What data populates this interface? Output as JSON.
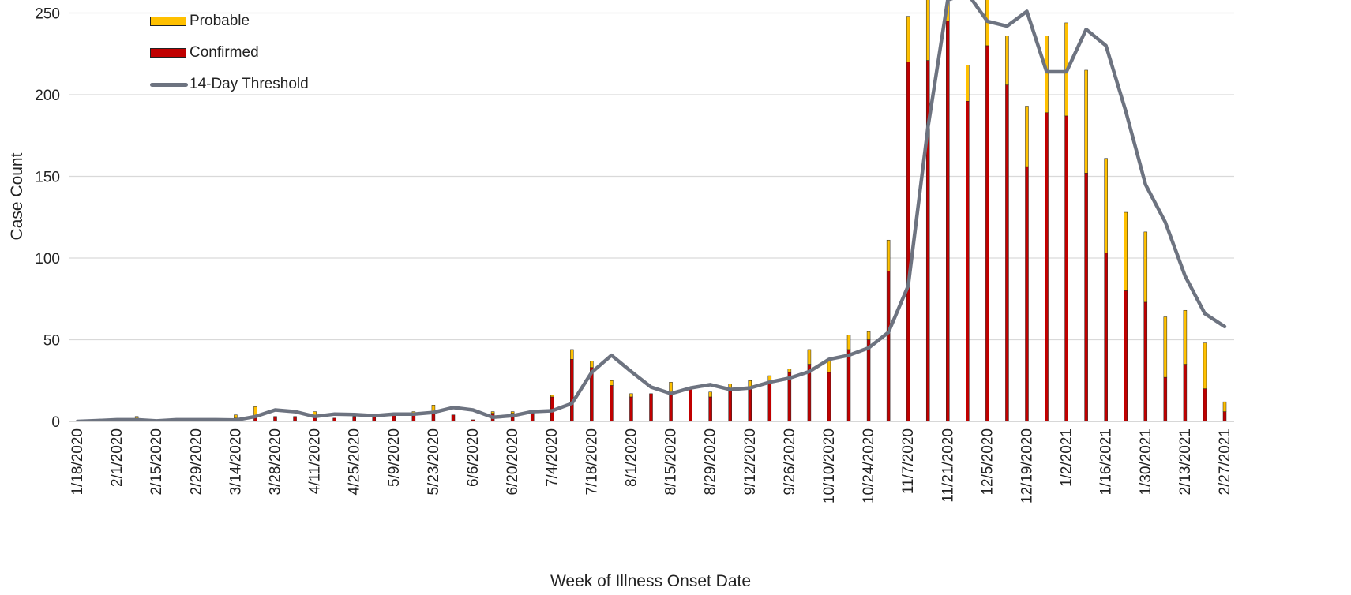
{
  "chart_data": {
    "type": "bar",
    "xlabel": "Week of Illness Onset Date",
    "ylabel": "Case Count",
    "ylim": [
      0,
      250
    ],
    "yticks": [
      0,
      50,
      100,
      150,
      200,
      250
    ],
    "grid": true,
    "legend_position": "top-left",
    "categories": [
      "1/18/2020",
      "1/25/2020",
      "2/1/2020",
      "2/8/2020",
      "2/15/2020",
      "2/22/2020",
      "2/29/2020",
      "3/7/2020",
      "3/14/2020",
      "3/21/2020",
      "3/28/2020",
      "4/4/2020",
      "4/11/2020",
      "4/18/2020",
      "4/25/2020",
      "5/2/2020",
      "5/9/2020",
      "5/16/2020",
      "5/23/2020",
      "5/30/2020",
      "6/6/2020",
      "6/13/2020",
      "6/20/2020",
      "6/27/2020",
      "7/4/2020",
      "7/11/2020",
      "7/18/2020",
      "7/25/2020",
      "8/1/2020",
      "8/8/2020",
      "8/15/2020",
      "8/22/2020",
      "8/29/2020",
      "9/5/2020",
      "9/12/2020",
      "9/19/2020",
      "9/26/2020",
      "10/3/2020",
      "10/10/2020",
      "10/17/2020",
      "10/24/2020",
      "10/31/2020",
      "11/7/2020",
      "11/14/2020",
      "11/21/2020",
      "11/28/2020",
      "12/5/2020",
      "12/12/2020",
      "12/19/2020",
      "12/26/2020",
      "1/2/2021",
      "1/9/2021",
      "1/16/2021",
      "1/23/2021",
      "1/30/2021",
      "2/6/2021",
      "2/13/2021",
      "2/20/2021",
      "2/27/2021"
    ],
    "tick_labels": [
      "1/18/2020",
      "2/1/2020",
      "2/15/2020",
      "2/29/2020",
      "3/14/2020",
      "3/28/2020",
      "4/11/2020",
      "4/25/2020",
      "5/9/2020",
      "5/23/2020",
      "6/6/2020",
      "6/20/2020",
      "7/4/2020",
      "7/18/2020",
      "8/1/2020",
      "8/15/2020",
      "8/29/2020",
      "9/12/2020",
      "9/26/2020",
      "10/10/2020",
      "10/24/2020",
      "11/7/2020",
      "11/21/2020",
      "12/5/2020",
      "12/19/2020",
      "1/2/2021",
      "1/16/2021",
      "1/30/2021",
      "2/13/2021",
      "2/27/2021"
    ],
    "series": [
      {
        "name": "Confirmed",
        "color": "#C00000",
        "kind": "bar-stacked",
        "values": [
          0,
          0,
          0,
          2,
          0,
          0,
          0,
          0,
          2,
          2,
          3,
          3,
          3,
          2,
          3,
          3,
          4,
          5,
          6,
          4,
          1,
          5,
          5,
          5,
          15,
          38,
          33,
          22,
          15,
          17,
          18,
          20,
          15,
          20,
          20,
          24,
          30,
          35,
          30,
          44,
          50,
          92,
          220,
          221,
          245,
          196,
          230,
          206,
          156,
          189,
          187,
          152,
          103,
          80,
          73,
          27,
          35,
          20,
          6
        ]
      },
      {
        "name": "Probable",
        "color": "#FFC000",
        "kind": "bar-stacked",
        "values": [
          0,
          0,
          0,
          1,
          0,
          0,
          0,
          0,
          2,
          7,
          0,
          0,
          3,
          0,
          0,
          0,
          0,
          1,
          4,
          0,
          0,
          1,
          1,
          0,
          1,
          6,
          4,
          3,
          2,
          0,
          6,
          0,
          3,
          3,
          5,
          4,
          2,
          9,
          8,
          9,
          5,
          19,
          28,
          42,
          24,
          22,
          36,
          30,
          37,
          47,
          57,
          63,
          58,
          48,
          43,
          37,
          33,
          28,
          6
        ]
      },
      {
        "name": "14-Day Threshold",
        "color": "#6D7380",
        "kind": "line",
        "values": [
          0,
          0.5,
          1,
          1,
          0.3,
          1,
          1,
          1,
          0.8,
          3,
          7,
          6,
          3,
          4.5,
          4.2,
          3.5,
          4.5,
          4.5,
          5.5,
          8.5,
          7,
          2.5,
          3.5,
          6,
          6.5,
          11,
          30,
          40.5,
          30.5,
          21,
          17,
          20.5,
          22.5,
          19.5,
          20.5,
          24,
          26.5,
          30.5,
          38,
          40.5,
          45,
          54.5,
          83,
          180,
          258,
          262,
          245,
          242,
          251,
          214,
          214,
          240,
          230,
          190,
          145,
          122,
          89,
          66,
          58
        ]
      }
    ]
  }
}
